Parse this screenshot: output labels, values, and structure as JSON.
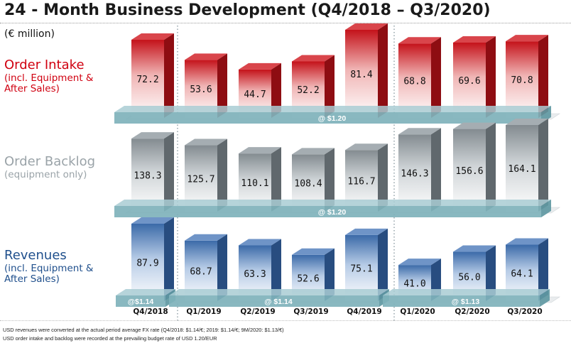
{
  "title": "24 - Month Business Development (Q4/2018 – Q3/2020)",
  "unit": "(€ million)",
  "rows": {
    "order_intake": {
      "label": "Order Intake",
      "sub1": "(incl. Equipment &",
      "sub2": "After Sales)"
    },
    "order_backlog": {
      "label": "Order Backlog",
      "sub1": "(equipment only)"
    },
    "revenues": {
      "label": "Revenues",
      "sub1": "(incl. Equipment &",
      "sub2": "After Sales)"
    }
  },
  "footnotes": [
    "USD revenues were converted at the actual period average FX rate (Q4/2018: $1.14/€; 2019: $1.14/€; 9M/2020: $1.13/€)",
    "USD order intake and backlog were recorded at the prevailing budget rate of USD 1.20/EUR"
  ],
  "colors": {
    "order_intake": "#c8141c",
    "order_backlog": "#8a9298",
    "revenues": "#3f6fae",
    "fx_band": "#7fb2bb"
  },
  "chart_data": [
    {
      "type": "bar",
      "name": "Order Intake",
      "categories": [
        "Q4/2018",
        "Q1/2019",
        "Q2/2019",
        "Q3/2019",
        "Q4/2019",
        "Q1/2020",
        "Q2/2020",
        "Q3/2020"
      ],
      "values": [
        72.2,
        53.6,
        44.7,
        52.2,
        81.4,
        68.8,
        69.6,
        70.8
      ],
      "labels": [
        "72.2",
        "53.6",
        "44.7",
        "52.2",
        "81.4",
        "68.8",
        "69.6",
        "70.8"
      ],
      "fx_bands": [
        {
          "label": "@ $1.20",
          "from": 0,
          "to": 7
        }
      ]
    },
    {
      "type": "bar",
      "name": "Order Backlog",
      "categories": [
        "Q4/2018",
        "Q1/2019",
        "Q2/2019",
        "Q3/2019",
        "Q4/2019",
        "Q1/2020",
        "Q2/2020",
        "Q3/2020"
      ],
      "values": [
        138.3,
        125.7,
        110.1,
        108.4,
        116.7,
        146.3,
        156.6,
        164.1
      ],
      "labels": [
        "138.3",
        "125.7",
        "110.1",
        "108.4",
        "116.7",
        "146.3",
        "156.6",
        "164.1"
      ],
      "fx_bands": [
        {
          "label": "@ $1.20",
          "from": 0,
          "to": 7
        }
      ]
    },
    {
      "type": "bar",
      "name": "Revenues",
      "categories": [
        "Q4/2018",
        "Q1/2019",
        "Q2/2019",
        "Q3/2019",
        "Q4/2019",
        "Q1/2020",
        "Q2/2020",
        "Q3/2020"
      ],
      "values": [
        87.9,
        68.7,
        63.3,
        52.6,
        75.1,
        41.0,
        56.0,
        64.1
      ],
      "labels": [
        "87.9",
        "68.7",
        "63.3",
        "52.6",
        "75.1",
        "41.0",
        "56.0",
        "64.1"
      ],
      "fx_bands": [
        {
          "label": "@$1.14",
          "from": 0,
          "to": 0
        },
        {
          "label": "@ $1.14",
          "from": 1,
          "to": 4
        },
        {
          "label": "@ $1.13",
          "from": 5,
          "to": 7
        }
      ]
    }
  ]
}
